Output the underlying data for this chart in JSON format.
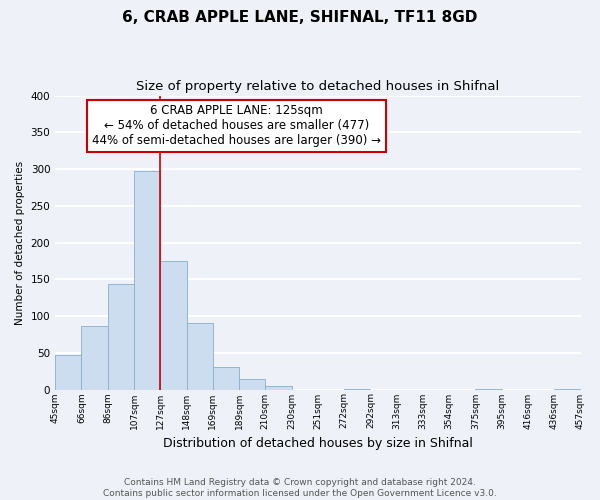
{
  "title": "6, CRAB APPLE LANE, SHIFNAL, TF11 8GD",
  "subtitle": "Size of property relative to detached houses in Shifnal",
  "xlabel": "Distribution of detached houses by size in Shifnal",
  "ylabel": "Number of detached properties",
  "bin_labels": [
    "45sqm",
    "66sqm",
    "86sqm",
    "107sqm",
    "127sqm",
    "148sqm",
    "169sqm",
    "189sqm",
    "210sqm",
    "230sqm",
    "251sqm",
    "272sqm",
    "292sqm",
    "313sqm",
    "333sqm",
    "354sqm",
    "375sqm",
    "395sqm",
    "416sqm",
    "436sqm",
    "457sqm"
  ],
  "bar_values": [
    47,
    86,
    144,
    297,
    175,
    91,
    30,
    14,
    5,
    0,
    0,
    1,
    0,
    0,
    0,
    0,
    1,
    0,
    0,
    1
  ],
  "bar_color": "#ccddf0",
  "bar_edge_color": "#89aecb",
  "vline_x_index": 4,
  "vline_color": "#cc0000",
  "annotation_line1": "6 CRAB APPLE LANE: 125sqm",
  "annotation_line2": "← 54% of detached houses are smaller (477)",
  "annotation_line3": "44% of semi-detached houses are larger (390) →",
  "ylim": [
    0,
    400
  ],
  "yticks": [
    0,
    50,
    100,
    150,
    200,
    250,
    300,
    350,
    400
  ],
  "footer_text": "Contains HM Land Registry data © Crown copyright and database right 2024.\nContains public sector information licensed under the Open Government Licence v3.0.",
  "bg_color": "#eef2f8",
  "grid_color": "#ffffff",
  "title_fontsize": 11,
  "subtitle_fontsize": 9.5,
  "annotation_fontsize": 8.5,
  "footer_fontsize": 6.5,
  "ylabel_fontsize": 7.5,
  "xlabel_fontsize": 9
}
